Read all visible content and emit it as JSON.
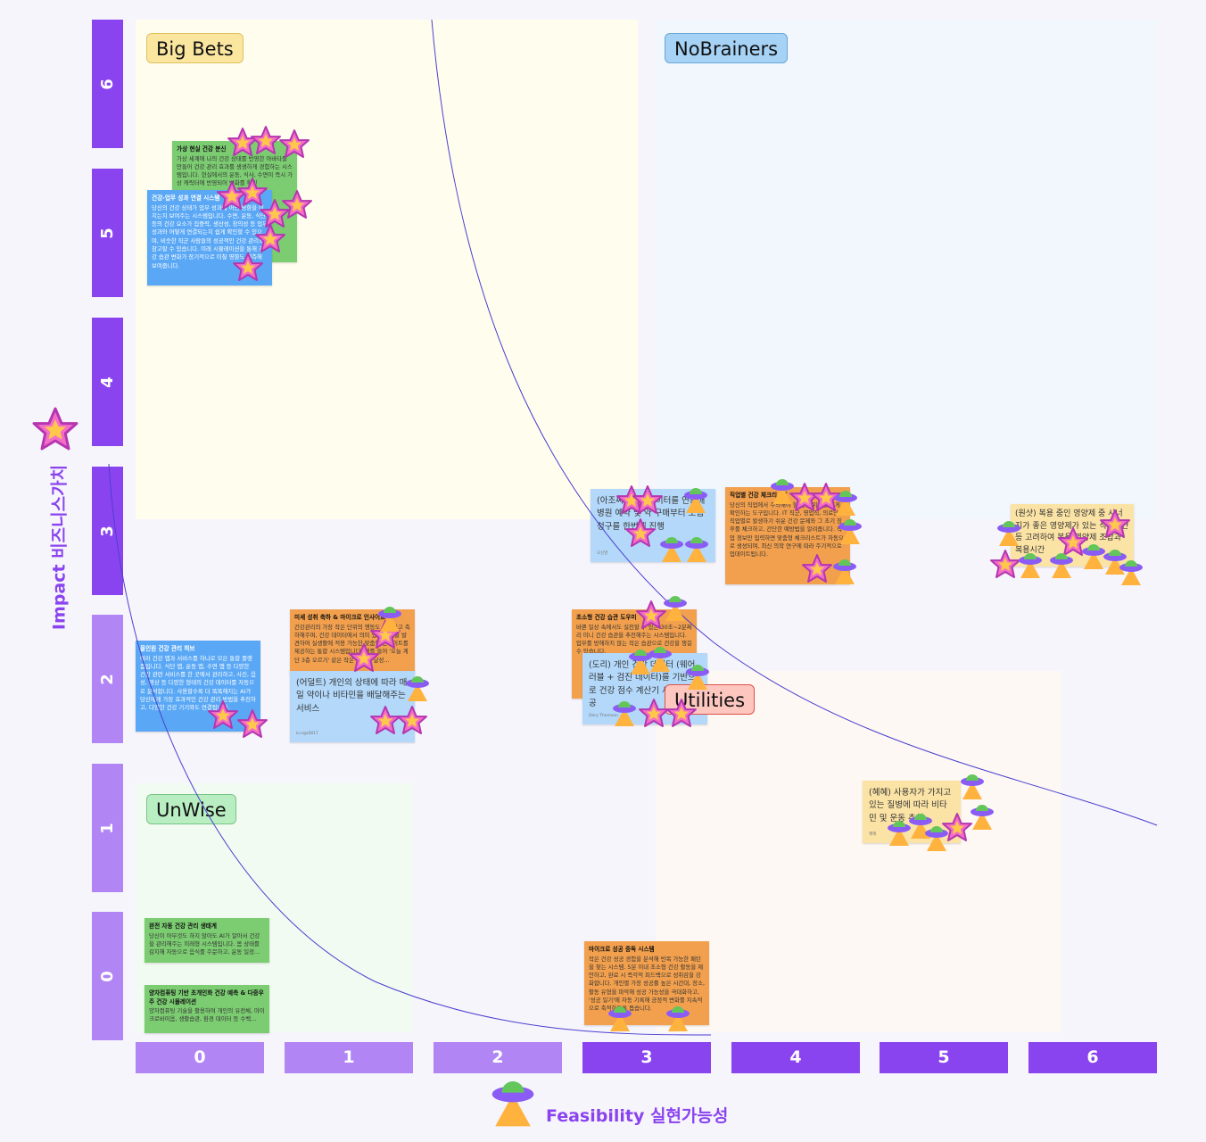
{
  "quadrants": {
    "big_bets": "Big Bets",
    "no_brainers": "NoBrainers",
    "utilities": "Utilities",
    "unwise": "UnWise"
  },
  "y_axis": {
    "label": "Impact 비즈니스가치",
    "ticks": [
      "0",
      "1",
      "2",
      "3",
      "4",
      "5",
      "6"
    ]
  },
  "x_axis": {
    "label": "Feasibility 실현가능성",
    "ticks": [
      "0",
      "1",
      "2",
      "3",
      "4",
      "5",
      "6"
    ]
  },
  "notes": [
    {
      "title": "가상 현실 건강 분신",
      "body": "가상 세계에 나의 건강 상태를 반영한 아바타를 만들어 건강 관리 효과를 생생하게 경험하는 시스템입니다. 현실에서의 운동, 식사, 수면이 즉시 가상 캐릭터에 반영되어 변화를 확인"
    },
    {
      "title": "건강-업무 성과 연결 시스템",
      "body": "당신의 건강 상태가 업무 성과에 어떤 영향을 미치는지 보여주는 시스템입니다. 수면, 운동, 식단 등의 건강 요소가 집중력, 생산성, 창의성 등 업무 성과와 어떻게 연결되는지 쉽게 확인할 수 있으며, 비슷한 직군 사람들의 성공적인 건강 관리도 참고할 수 있습니다. 미래 시뮬레이션을 통해 건강 습관 변화가 장기적으로 미칠 영향도 예측해 보여줍니다."
    },
    {
      "title": "올인원 건강 관리 허브",
      "body": "여러 건강 앱과 서비스를 하나로 모은 통합 플랫폼입니다. 식단 앱, 운동 앱, 수면 앱 등 다양한 건강 관련 서비스를 한 곳에서 관리하고, 사진, 음성, 영상 등 다양한 형태의 건강 데이터를 자동으로 분석합니다. 사용할수록 더 똑똑해지는 AI가 당신에게 가장 효과적인 건강 관리 방법을 추천하고, 다양한 건강 기기와도 연결됩니다."
    },
    {
      "title": "미세 성취 축하 & 마이크로 인사이트",
      "body": "건강관리의 가장 작은 단위의 행동도 인정하고 축하해주며, 건강 데이터에서 의미 있는 패턴을 발견하여 실생활에 적용 가능한 맞춤형 인사이트를 제공하는 통합 시스템입니다. 예를 들어 '오늘 계단 3층 오르기' 같은 작은 목표를 달성..."
    },
    {
      "body": "(어덜트) 개인의 상태에 따라 매일 약이나 비타민을 배달해주는 서비스",
      "author": "ki.ngs0817"
    },
    {
      "body": "(아조씨) 건강 데이터를 연동해 병원 예약 및 약 구매부터 보험 청구를 한번에 진행",
      "author": "오신영"
    },
    {
      "title": "직업별 건강 체크리스트",
      "body": "당신의 직업에서 주의해야 할 건강 위험을 쉽게 확인하는 도구입니다. IT 직군, 영업직, 의료인 등 직업별로 발생하기 쉬운 건강 문제와 그 초기 징후를 체크하고, 간단한 예방법을 알려줍니다. 직업 정보만 입력하면 맞춤형 체크리스트가 자동으로 생성되며, 최신 의학 연구에 따라 주기적으로 업데이트됩니다."
    },
    {
      "body": "(원샷) 복용 중인 영양제 중 시너지가 좋은 영양제가 있는 식사시간 등 고려하여 복용 영양제 조합과 복용시간"
    },
    {
      "title": "초소형 건강 습관 도우미",
      "body": "바쁜 일상 속에서도 실천할 수 있는 30초~2분짜리 미니 건강 습관을 추천해주는 시스템입니다. 업무를 방해하지 않는 작은 습관으로 건강을 챙길 수 있습니다."
    },
    {
      "body": "(도리) 개인 건강 데이터 (웨어러블 + 검진 데이터)를 기반으로 건강 점수 계산기 서비스 제공",
      "author": "Dery Thomson"
    },
    {
      "body": "(혜혜) 사용자가 가지고 있는 질병에 따라 비타민 및 운동 추천",
      "author": "혜혜"
    },
    {
      "title": "완전 자동 건강 관리 생태계",
      "body": "당신이 아무것도 하지 않아도 AI가 알아서 건강을 관리해주는 미래형 시스템입니다. 몸 상태를 감지해 자동으로 음식를 주문하고, 운동 일정..."
    },
    {
      "title": "양자컴퓨팅 기반 초개인화 건강 예측 & 다중우주 건강 시뮬레이션",
      "body": "양자컴퓨팅 기술을 활용하여 개인의 유전체, 마이크로바이옴, 생활습관, 환경 데이터 등 수백..."
    },
    {
      "title": "마이크로 성공 중독 시스템",
      "body": "작은 건강 성공 경험을 분석해 반복 가능한 패턴을 찾는 시스템. 5분 이내 초소형 건강 활동을 제안하고, 완료 시 즉각적 피드백으로 성취감을 강화합니다. 개인별 가장 성공률 높은 시간대, 장소, 활동 유형을 파악해 성공 가능성을 극대화하고, '성공 일기'에 자동 기록해 긍정적 변화를 지속적으로 축적하도록 돕습니다."
    }
  ]
}
